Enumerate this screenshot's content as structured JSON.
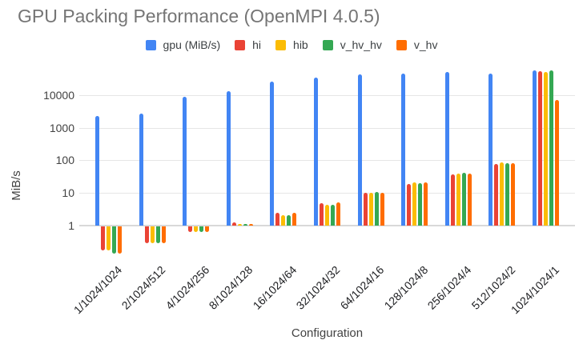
{
  "title": "GPU Packing Performance (OpenMPI 4.0.5)",
  "chart_data": {
    "type": "bar",
    "scale": "log",
    "title": "GPU Packing Performance (OpenMPI 4.0.5)",
    "xlabel": "Configuration",
    "ylabel": "MiB/s",
    "y_ticks": [
      1,
      10,
      100,
      1000,
      10000
    ],
    "ylim": [
      0.1,
      67000
    ],
    "grid": true,
    "legend_position": "top",
    "categories": [
      "1/1024/1024",
      "2/1024/512",
      "4/1024/256",
      "8/1024/128",
      "16/1024/64",
      "32/1024/32",
      "64/1024/16",
      "128/1024/8",
      "256/1024/4",
      "512/1024/2",
      "1024/1024/1"
    ],
    "series": [
      {
        "name": "gpu (MiB/s)",
        "color": "#4285F4",
        "values": [
          2300,
          2750,
          8700,
          13000,
          25500,
          34500,
          43500,
          46000,
          50000,
          46000,
          56000
        ]
      },
      {
        "name": "hi",
        "color": "#EA4335",
        "values": [
          0.18,
          0.3,
          0.67,
          1.25,
          2.4,
          4.8,
          10,
          19,
          37,
          75,
          54000
        ]
      },
      {
        "name": "hib",
        "color": "#FBBC04",
        "values": [
          0.18,
          0.31,
          0.67,
          1.15,
          2.1,
          4.4,
          10,
          21,
          40,
          85,
          52000
        ]
      },
      {
        "name": "v_hv_hv",
        "color": "#34A853",
        "values": [
          0.15,
          0.3,
          0.66,
          1.1,
          2.1,
          4.4,
          10.5,
          20,
          41,
          80,
          57000
        ]
      },
      {
        "name": "v_hv",
        "color": "#FF6D01",
        "values": [
          0.15,
          0.31,
          0.66,
          1.15,
          2.4,
          5.0,
          10,
          21,
          40,
          82,
          7000
        ]
      }
    ]
  }
}
